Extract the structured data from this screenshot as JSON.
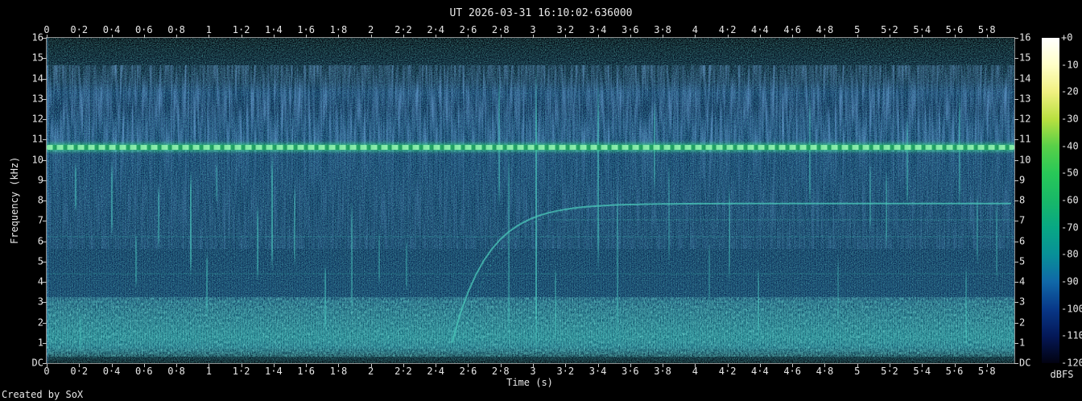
{
  "window": {
    "credit": "Created by SoX"
  },
  "palette": {
    "tone_green": "#5ada8a",
    "background_navy": "#0c3160",
    "noise_teal": "#2fb9ae",
    "axis_text": "#e8e8e8"
  },
  "chart_data": {
    "type": "heatmap",
    "subtype": "audio-spectrogram",
    "title": "UT 2026-03-31 16:10:02·636000",
    "xlabel": "Time (s)",
    "ylabel": "Frequency (kHz)",
    "x_range_s": [
      0,
      5.97
    ],
    "x_tick_step_s": 0.2,
    "x_ticks": [
      "0",
      "0·2",
      "0·4",
      "0·6",
      "0·8",
      "1",
      "1·2",
      "1·4",
      "1·6",
      "1·8",
      "2",
      "2·2",
      "2·4",
      "2·6",
      "2·8",
      "3",
      "3·2",
      "3·4",
      "3·6",
      "3·8",
      "4",
      "4·2",
      "4·4",
      "4·6",
      "4·8",
      "5",
      "5·2",
      "5·4",
      "5·6",
      "5·8"
    ],
    "y_range_khz": [
      0,
      16
    ],
    "y_ticks": [
      "16",
      "15",
      "14",
      "13",
      "12",
      "11",
      "10",
      "9",
      "8",
      "7",
      "6",
      "5",
      "4",
      "3",
      "2",
      "1",
      "DC"
    ],
    "grid": false,
    "legend_position": "right-colorbar",
    "colorbar": {
      "label": "dBFS",
      "ticks": [
        "+0",
        "-10",
        "-20",
        "-30",
        "-40",
        "-50",
        "-60",
        "-70",
        "-80",
        "-90",
        "-100",
        "-110",
        "-120"
      ],
      "colors": [
        "#ffffff",
        "#ffffc8",
        "#f0f080",
        "#b8e040",
        "#58d048",
        "#28c858",
        "#18b868",
        "#08a884",
        "#089098",
        "#1068a8",
        "#083888",
        "#041858",
        "#020210"
      ]
    },
    "features": {
      "tone": {
        "freq_khz": 10.62,
        "description": "continuous bright tone across entire recording"
      },
      "chirp": {
        "start_s": 2.47,
        "tau_s": 0.22,
        "asymptote_khz": 7.85,
        "description": "exponential rising sweep flattening near 7.85 kHz, continues to end"
      },
      "harmonic_lines": [
        {
          "khz": 7.05,
          "from_s": 3.1,
          "to_s": 5.97,
          "opacity": 0.16
        },
        {
          "khz": 6.2,
          "from_s": 0.0,
          "to_s": 5.97,
          "opacity": 0.14
        },
        {
          "khz": 4.4,
          "from_s": 0.0,
          "to_s": 5.97,
          "opacity": 0.12
        },
        {
          "khz": 3.0,
          "from_s": 0.0,
          "to_s": 5.97,
          "opacity": 0.1
        }
      ],
      "impulses": [
        [
          0.18,
          7.4,
          9.9,
          0.5
        ],
        [
          0.21,
          0.4,
          2.6,
          0.35
        ],
        [
          0.4,
          6.2,
          9.9,
          0.5
        ],
        [
          0.55,
          3.6,
          6.4,
          0.45
        ],
        [
          0.69,
          5.6,
          8.8,
          0.45
        ],
        [
          0.89,
          4.2,
          9.5,
          0.6
        ],
        [
          0.99,
          2.2,
          5.5,
          0.45
        ],
        [
          1.05,
          7.9,
          9.9,
          0.35
        ],
        [
          1.3,
          4.0,
          7.8,
          0.5
        ],
        [
          1.39,
          4.5,
          10.3,
          0.6
        ],
        [
          1.53,
          4.7,
          8.8,
          0.45
        ],
        [
          1.72,
          1.5,
          4.9,
          0.5
        ],
        [
          1.88,
          2.3,
          8.0,
          0.45
        ],
        [
          2.05,
          3.8,
          6.5,
          0.35
        ],
        [
          2.22,
          3.5,
          6.1,
          0.35
        ],
        [
          2.79,
          7.6,
          14.1,
          0.45
        ],
        [
          2.85,
          0.8,
          10.7,
          0.4
        ],
        [
          3.02,
          0.2,
          14.5,
          0.65
        ],
        [
          3.14,
          1.2,
          4.8,
          0.4
        ],
        [
          3.4,
          4.4,
          13.9,
          0.55
        ],
        [
          3.52,
          1.2,
          8.8,
          0.4
        ],
        [
          3.75,
          8.4,
          12.9,
          0.45
        ],
        [
          3.84,
          4.8,
          9.9,
          0.3
        ],
        [
          4.09,
          2.8,
          6.0,
          0.3
        ],
        [
          4.21,
          4.0,
          8.8,
          0.4
        ],
        [
          4.39,
          1.2,
          4.8,
          0.4
        ],
        [
          4.71,
          7.6,
          13.1,
          0.45
        ],
        [
          4.88,
          2.0,
          5.2,
          0.3
        ],
        [
          5.08,
          6.4,
          9.9,
          0.4
        ],
        [
          5.18,
          5.6,
          9.5,
          0.4
        ],
        [
          5.31,
          7.6,
          12.1,
          0.45
        ],
        [
          5.63,
          7.6,
          13.3,
          0.45
        ],
        [
          5.67,
          0.8,
          4.8,
          0.4
        ],
        [
          5.74,
          4.8,
          8.4,
          0.35
        ],
        [
          5.86,
          4.0,
          8.0,
          0.35
        ]
      ]
    }
  }
}
